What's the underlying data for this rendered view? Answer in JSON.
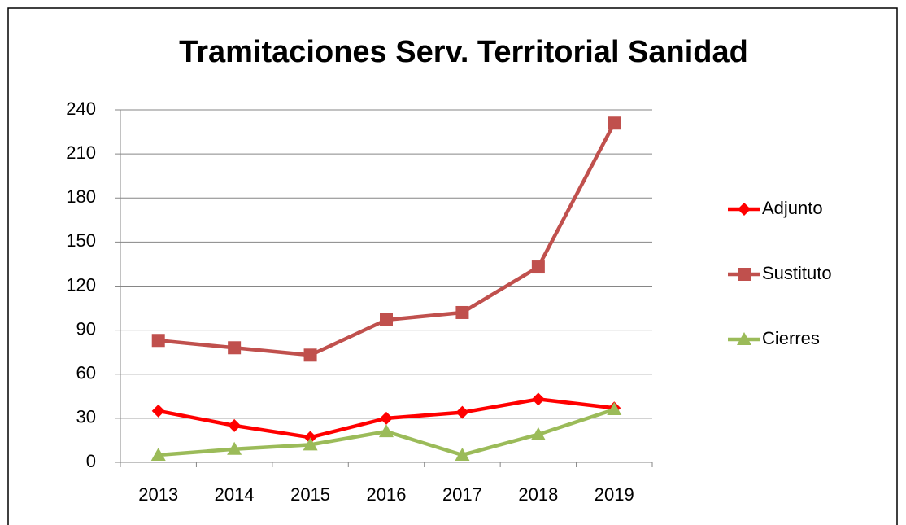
{
  "chart_data": {
    "type": "line",
    "title": "Tramitaciones Serv. Territorial Sanidad",
    "categories": [
      "2013",
      "2014",
      "2015",
      "2016",
      "2017",
      "2018",
      "2019"
    ],
    "series": [
      {
        "name": "Adjunto",
        "color": "#ff0000",
        "marker": "diamond",
        "values": [
          35,
          25,
          17,
          30,
          34,
          43,
          37
        ]
      },
      {
        "name": "Sustituto",
        "color": "#c0504d",
        "marker": "square",
        "values": [
          83,
          78,
          73,
          97,
          102,
          133,
          231
        ]
      },
      {
        "name": "Cierres",
        "color": "#9bbb59",
        "marker": "triangle",
        "values": [
          5,
          9,
          12,
          21,
          5,
          19,
          36
        ]
      }
    ],
    "ylim": [
      0,
      240
    ],
    "yticks": [
      0,
      30,
      60,
      90,
      120,
      150,
      180,
      210,
      240
    ],
    "grid": true,
    "legend": "right"
  }
}
